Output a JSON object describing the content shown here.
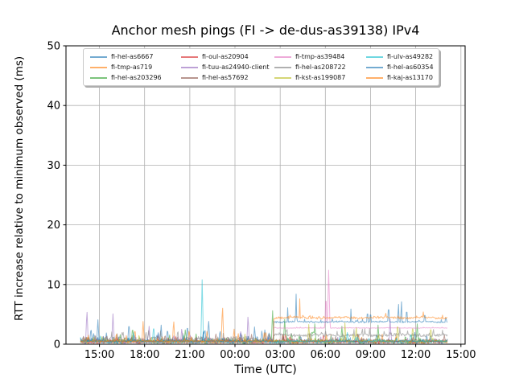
{
  "figure": {
    "title": "Anchor mesh pings (FI -> de-dus-as39138) IPv4",
    "xlabel": "Time (UTC)",
    "ylabel": "RTT increase relative to minimum observed (ms)"
  },
  "colors": {
    "background": "#ffffff",
    "grid": "#b0b0b0",
    "axis": "#000000",
    "tick_label": "#000000",
    "legend_border": "#c8c8c8"
  },
  "chart_data": {
    "type": "line",
    "title": "Anchor mesh pings (FI -> de-dus-as39138) IPv4",
    "xlabel": "Time (UTC)",
    "ylabel": "RTT increase relative to minimum observed (ms)",
    "grid": true,
    "legend_position": "upper center, 4 columns, 3 rows, column-major",
    "line_opacity": 0.55,
    "x_axis": {
      "unit": "hours UTC (values >24 are next day)",
      "range": [
        12.78,
        39.28
      ],
      "ticks": [
        {
          "t": 15,
          "label": "15:00"
        },
        {
          "t": 18,
          "label": "18:00"
        },
        {
          "t": 21,
          "label": "21:00"
        },
        {
          "t": 24,
          "label": "00:00"
        },
        {
          "t": 27,
          "label": "03:00"
        },
        {
          "t": 30,
          "label": "06:00"
        },
        {
          "t": 33,
          "label": "09:00"
        },
        {
          "t": 36,
          "label": "12:00"
        },
        {
          "t": 39,
          "label": "15:00"
        }
      ]
    },
    "y_axis": {
      "range": [
        0,
        50
      ],
      "ticks": [
        {
          "v": 0,
          "label": "0"
        },
        {
          "v": 10,
          "label": "10"
        },
        {
          "v": 20,
          "label": "20"
        },
        {
          "v": 30,
          "label": "30"
        },
        {
          "v": 40,
          "label": "40"
        },
        {
          "v": 50,
          "label": "50"
        }
      ]
    },
    "data_time_span": {
      "start": 13.74,
      "end": 38.1,
      "step_change_at": 26.55
    },
    "series_note": "baseline segments are [fromHour,toHour,level_ms,noise_ms]; spikes are [hour,peak_ms,optional_halfwidth_h]; auto_spikes synthesize the many small unlabeled spikes",
    "series": [
      {
        "name": "fi-hel-as6667",
        "color": "#1f77b4",
        "baseline": [
          [
            13.74,
            38.1,
            0.45,
            0.45
          ]
        ],
        "spikes": [
          [
            14.9,
            4.1
          ],
          [
            16.96,
            3.8
          ],
          [
            19.1,
            3.2
          ],
          [
            20.84,
            3.4
          ],
          [
            22.25,
            4.3
          ],
          [
            25.3,
            2.9
          ]
        ],
        "auto_spikes": [
          {
            "count": 14,
            "amp": [
              1.5,
              3.0
            ],
            "range": [
              13.9,
              26.4
            ]
          },
          {
            "count": 7,
            "amp": [
              1.2,
              2.2
            ],
            "range": [
              26.7,
              38.0
            ]
          }
        ]
      },
      {
        "name": "fi-tmp-as719",
        "color": "#ff7f0e",
        "baseline": [
          [
            13.74,
            38.1,
            0.45,
            0.4
          ]
        ],
        "spikes": [
          [
            13.52,
            3.2
          ],
          [
            17.9,
            3.8
          ],
          [
            19.93,
            4.2
          ],
          [
            23.17,
            6.8
          ]
        ],
        "auto_spikes": [
          {
            "count": 10,
            "amp": [
              1.4,
              2.8
            ],
            "range": [
              13.9,
              26.4
            ]
          },
          {
            "count": 6,
            "amp": [
              1.2,
              2.0
            ],
            "range": [
              26.7,
              38.0
            ]
          }
        ]
      },
      {
        "name": "fi-hel-as203296",
        "color": "#2ca02c",
        "baseline": [
          [
            13.74,
            38.1,
            0.4,
            0.35
          ]
        ],
        "spikes": [
          [
            17.2,
            3.0
          ],
          [
            26.5,
            5.6
          ],
          [
            27.3,
            4.2
          ],
          [
            29.3,
            3.4
          ],
          [
            31.1,
            3.0
          ],
          [
            33.5,
            3.2
          ],
          [
            36.1,
            3.4
          ]
        ],
        "auto_spikes": [
          {
            "count": 10,
            "amp": [
              1.2,
              2.6
            ],
            "range": [
              13.9,
              38.0
            ]
          }
        ]
      },
      {
        "name": "fi-oul-as20904",
        "color": "#d62728",
        "baseline": [
          [
            13.74,
            38.1,
            0.35,
            0.3
          ]
        ],
        "spikes": [],
        "auto_spikes": [
          {
            "count": 8,
            "amp": [
              1.0,
              2.0
            ],
            "range": [
              13.9,
              38.0
            ]
          }
        ]
      },
      {
        "name": "fi-tuu-as24940-client",
        "color": "#9467bd",
        "baseline": [
          [
            13.74,
            38.1,
            0.45,
            0.4
          ]
        ],
        "spikes": [
          [
            14.17,
            6.0
          ],
          [
            15.9,
            5.1
          ],
          [
            18.3,
            3.0
          ],
          [
            20.47,
            2.8
          ],
          [
            24.87,
            5.1
          ],
          [
            34.3,
            4.2
          ]
        ],
        "auto_spikes": [
          {
            "count": 7,
            "amp": [
              1.2,
              2.4
            ],
            "range": [
              13.9,
              26.4
            ]
          }
        ]
      },
      {
        "name": "fi-hel-as57692",
        "color": "#8c564b",
        "baseline": [
          [
            13.74,
            38.1,
            0.55,
            0.45
          ]
        ],
        "spikes": [],
        "auto_spikes": [
          {
            "count": 10,
            "amp": [
              1.0,
              2.2
            ],
            "range": [
              13.9,
              38.0
            ]
          }
        ]
      },
      {
        "name": "fi-tmp-as39484",
        "color": "#e377c2",
        "baseline": [
          [
            13.74,
            26.55,
            0.35,
            0.15
          ],
          [
            26.55,
            38.1,
            2.72,
            0.07
          ]
        ],
        "spikes": [
          [
            30.04,
            9.0,
            0.1
          ],
          [
            30.22,
            12.4,
            0.12
          ],
          [
            32.6,
            3.4
          ],
          [
            37.8,
            3.3
          ]
        ],
        "auto_spikes": [
          {
            "count": 4,
            "amp": [
              0.8,
              1.5
            ],
            "range": [
              13.9,
              26.4
            ]
          }
        ]
      },
      {
        "name": "fi-hel-as208722",
        "color": "#7f7f7f",
        "baseline": [
          [
            13.74,
            26.55,
            0.85,
            0.6
          ],
          [
            26.55,
            38.1,
            1.5,
            0.45
          ]
        ],
        "spikes": [],
        "auto_spikes": [
          {
            "count": 18,
            "amp": [
              1.8,
              2.9
            ],
            "range": [
              13.9,
              38.0
            ]
          }
        ]
      },
      {
        "name": "fi-kst-as199087",
        "color": "#bcbd22",
        "baseline": [
          [
            13.74,
            38.1,
            0.45,
            0.35
          ]
        ],
        "spikes": [
          [
            28.9,
            3.3
          ],
          [
            31.3,
            3.6
          ],
          [
            32.05,
            3.1
          ],
          [
            34.8,
            3.7
          ],
          [
            35.8,
            3.3
          ],
          [
            37.0,
            3.1
          ]
        ],
        "auto_spikes": [
          {
            "count": 8,
            "amp": [
              1.0,
              2.0
            ],
            "range": [
              13.9,
              38.0
            ]
          }
        ]
      },
      {
        "name": "fi-ulv-as49282",
        "color": "#17becf",
        "baseline": [
          [
            13.74,
            38.1,
            0.45,
            0.4
          ]
        ],
        "spikes": [
          [
            18.6,
            3.3
          ],
          [
            21.82,
            10.8
          ]
        ],
        "auto_spikes": [
          {
            "count": 10,
            "amp": [
              1.0,
              2.2
            ],
            "range": [
              13.9,
              38.0
            ]
          }
        ]
      },
      {
        "name": "fi-hel-as60354",
        "color": "#1f77b4",
        "baseline": [
          [
            13.74,
            26.55,
            0.5,
            0.3
          ],
          [
            26.55,
            38.1,
            3.75,
            0.22
          ]
        ],
        "spikes": [
          [
            27.5,
            6.1
          ],
          [
            28.06,
            8.4
          ],
          [
            31.7,
            5.9
          ],
          [
            32.8,
            6.5
          ],
          [
            33.0,
            6.3
          ],
          [
            34.2,
            7.4
          ],
          [
            34.85,
            7.5
          ],
          [
            35.05,
            8.0
          ],
          [
            35.4,
            6.9
          ],
          [
            36.6,
            6.2
          ],
          [
            38.0,
            5.6
          ]
        ],
        "auto_spikes": [
          {
            "count": 6,
            "amp": [
              1.0,
              2.2
            ],
            "range": [
              13.9,
              26.4
            ]
          }
        ]
      },
      {
        "name": "fi-kaj-as13170",
        "color": "#ff7f0e",
        "baseline": [
          [
            13.74,
            26.55,
            0.5,
            0.3
          ],
          [
            26.55,
            38.1,
            4.45,
            0.32
          ]
        ],
        "spikes": [
          [
            27.0,
            5.8
          ],
          [
            28.3,
            7.6
          ],
          [
            31.8,
            5.6
          ],
          [
            34.0,
            5.5
          ],
          [
            36.5,
            5.4
          ]
        ],
        "auto_spikes": [
          {
            "count": 6,
            "amp": [
              1.0,
              2.0
            ],
            "range": [
              13.9,
              26.4
            ]
          }
        ]
      }
    ]
  }
}
